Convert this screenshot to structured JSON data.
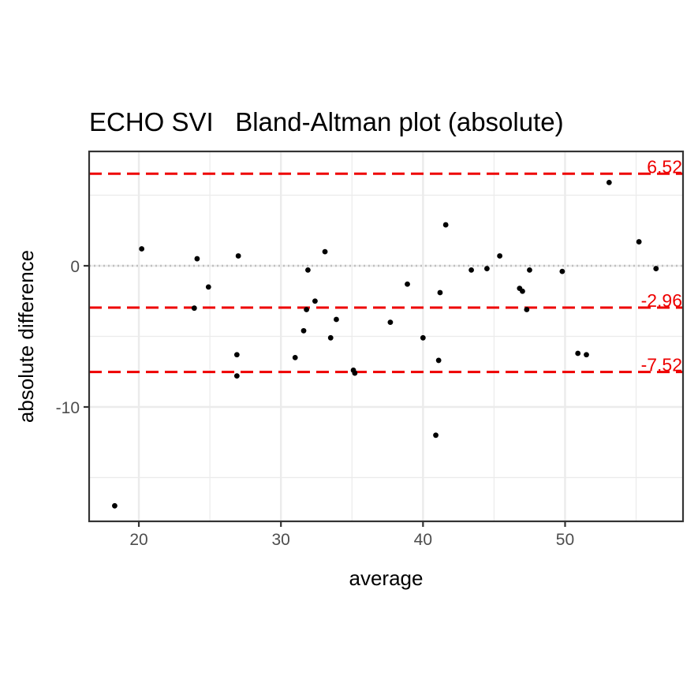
{
  "chart_data": {
    "type": "scatter",
    "title": "ECHO SVI   Bland-Altman plot (absolute)",
    "xlabel": "average",
    "ylabel": "absolute difference",
    "xlim": [
      16.5,
      58.3
    ],
    "ylim": [
      -18.1,
      8.1
    ],
    "x_ticks": [
      20,
      30,
      40,
      50
    ],
    "x_tick_labels": [
      "20",
      "30",
      "40",
      "50"
    ],
    "y_ticks": [
      0,
      -10
    ],
    "y_tick_labels": [
      "0",
      "-10"
    ],
    "grid": true,
    "zero_line": 0,
    "reference_lines": [
      {
        "value": 6.52,
        "label": "6.52"
      },
      {
        "value": -2.96,
        "label": "-2.96"
      },
      {
        "value": -7.52,
        "label": "-7.52"
      }
    ],
    "colors": {
      "reference": "#ee0000",
      "points": "#000000",
      "zero_line": "#bfbfbf"
    },
    "points": [
      {
        "x": 18.3,
        "y": -17.0
      },
      {
        "x": 20.2,
        "y": 1.2
      },
      {
        "x": 23.9,
        "y": -3.0
      },
      {
        "x": 24.1,
        "y": 0.5
      },
      {
        "x": 24.9,
        "y": -1.5
      },
      {
        "x": 26.9,
        "y": -6.3
      },
      {
        "x": 26.9,
        "y": -7.8
      },
      {
        "x": 27.0,
        "y": 0.7
      },
      {
        "x": 31.0,
        "y": -6.5
      },
      {
        "x": 31.6,
        "y": -4.6
      },
      {
        "x": 31.8,
        "y": -3.1
      },
      {
        "x": 31.9,
        "y": -0.3
      },
      {
        "x": 32.4,
        "y": -2.5
      },
      {
        "x": 33.1,
        "y": 1.0
      },
      {
        "x": 33.5,
        "y": -5.1
      },
      {
        "x": 33.9,
        "y": -3.8
      },
      {
        "x": 35.1,
        "y": -7.4
      },
      {
        "x": 35.2,
        "y": -7.6
      },
      {
        "x": 37.7,
        "y": -4.0
      },
      {
        "x": 38.9,
        "y": -1.3
      },
      {
        "x": 40.0,
        "y": -5.1
      },
      {
        "x": 40.9,
        "y": -12.0
      },
      {
        "x": 41.1,
        "y": -6.7
      },
      {
        "x": 41.2,
        "y": -1.9
      },
      {
        "x": 41.6,
        "y": 2.9
      },
      {
        "x": 43.4,
        "y": -0.3
      },
      {
        "x": 44.5,
        "y": -0.2
      },
      {
        "x": 45.4,
        "y": 0.7
      },
      {
        "x": 46.8,
        "y": -1.6
      },
      {
        "x": 47.0,
        "y": -1.8
      },
      {
        "x": 47.3,
        "y": -3.1
      },
      {
        "x": 47.5,
        "y": -0.3
      },
      {
        "x": 49.8,
        "y": -0.4
      },
      {
        "x": 50.9,
        "y": -6.2
      },
      {
        "x": 51.5,
        "y": -6.3
      },
      {
        "x": 53.1,
        "y": 5.9
      },
      {
        "x": 55.2,
        "y": 1.7
      },
      {
        "x": 56.4,
        "y": -0.2
      }
    ]
  }
}
